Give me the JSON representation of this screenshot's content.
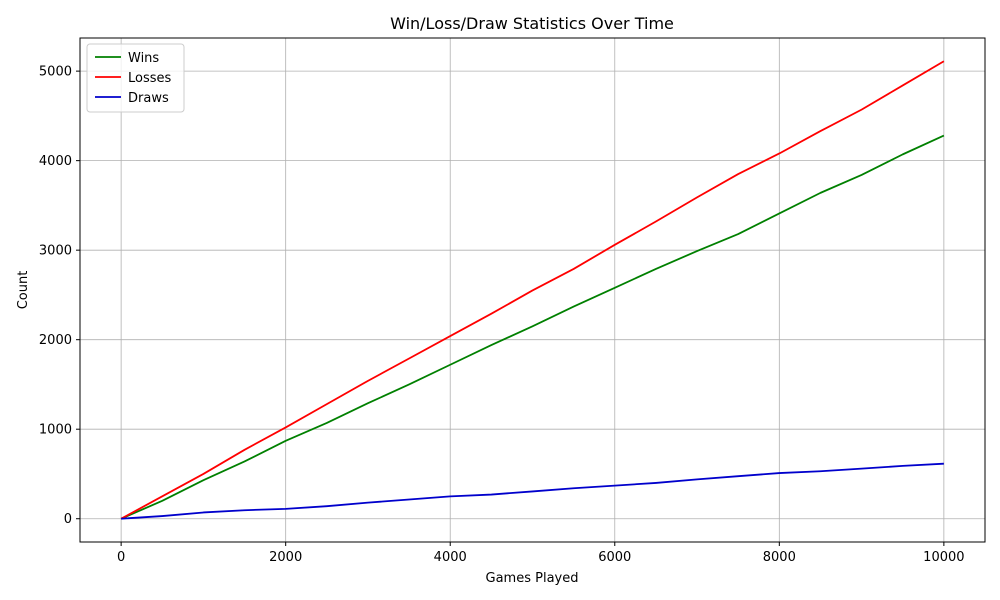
{
  "chart_data": {
    "type": "line",
    "title": "Win/Loss/Draw Statistics Over Time",
    "xlabel": "Games Played",
    "ylabel": "Count",
    "xlim": [
      -500,
      10500
    ],
    "ylim": [
      -260,
      5370
    ],
    "xticks": [
      0,
      2000,
      4000,
      6000,
      8000,
      10000
    ],
    "yticks": [
      0,
      1000,
      2000,
      3000,
      4000,
      5000
    ],
    "grid": true,
    "legend_position": "top-left",
    "x": [
      0,
      500,
      1000,
      1500,
      2000,
      2500,
      3000,
      3500,
      4000,
      4500,
      5000,
      5500,
      6000,
      6500,
      7000,
      7500,
      8000,
      8500,
      9000,
      9500,
      10000
    ],
    "series": [
      {
        "name": "Wins",
        "color": "#008000",
        "values": [
          0,
          200,
          430,
          640,
          870,
          1070,
          1290,
          1500,
          1720,
          1940,
          2150,
          2370,
          2580,
          2790,
          2990,
          3180,
          3410,
          3640,
          3840,
          4070,
          4280
        ]
      },
      {
        "name": "Losses",
        "color": "#ff0000",
        "values": [
          0,
          250,
          500,
          770,
          1020,
          1280,
          1540,
          1790,
          2040,
          2290,
          2550,
          2790,
          3060,
          3320,
          3590,
          3850,
          4080,
          4330,
          4570,
          4840,
          5110
        ]
      },
      {
        "name": "Draws",
        "color": "#0000cc",
        "values": [
          0,
          30,
          70,
          95,
          110,
          140,
          180,
          215,
          250,
          270,
          305,
          340,
          370,
          400,
          440,
          475,
          510,
          530,
          560,
          590,
          615
        ]
      }
    ]
  }
}
